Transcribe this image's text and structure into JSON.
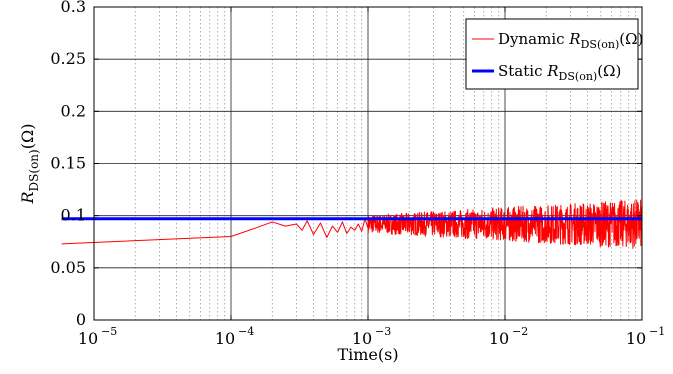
{
  "chart_data": {
    "type": "line",
    "title": "",
    "xlabel": "Time(s)",
    "ylabel": "R_DS(on)(Ω)",
    "ylabel_parts": {
      "symbol": "R",
      "subscript": "DS(on)",
      "unit": "(Ω)"
    },
    "xscale": "log",
    "xlim": [
      1e-05,
      0.1
    ],
    "ylim": [
      0,
      0.3
    ],
    "x_ticks": [
      {
        "base": "10",
        "exp": "−5"
      },
      {
        "base": "10",
        "exp": "−4"
      },
      {
        "base": "10",
        "exp": "−3"
      },
      {
        "base": "10",
        "exp": "−2"
      },
      {
        "base": "10",
        "exp": "−1"
      }
    ],
    "y_ticks": [
      "0",
      "0.05",
      "0.1",
      "0.15",
      "0.2",
      "0.25",
      "0.3"
    ],
    "grid": true,
    "legend": {
      "placement": "top-right",
      "entries": [
        {
          "prefix": "Dynamic ",
          "symbol": "R",
          "subscript": "DS(on)",
          "unit": "(Ω)",
          "color": "#ff0000"
        },
        {
          "prefix": "Static ",
          "symbol": "R",
          "subscript": "DS(on)",
          "unit": "(Ω)",
          "color": "#0000ff"
        }
      ]
    },
    "series": [
      {
        "name": "Dynamic R_DS(on)(Ω)",
        "color": "#ff0000",
        "x": [
          5.8e-06,
          0.0001,
          0.00015,
          0.0002,
          0.00025,
          0.0003,
          0.00033,
          0.00036,
          0.0004,
          0.00045,
          0.0005,
          0.00055,
          0.0006,
          0.00065,
          0.0007,
          0.00075,
          0.0008,
          0.00085,
          0.0009,
          0.00095,
          0.001
        ],
        "y": [
          0.073,
          0.08,
          0.088,
          0.094,
          0.09,
          0.092,
          0.086,
          0.095,
          0.082,
          0.093,
          0.079,
          0.09,
          0.084,
          0.094,
          0.083,
          0.089,
          0.086,
          0.092,
          0.085,
          0.097,
          0.088
        ],
        "noisy_region": {
          "x_start": 0.001,
          "x_end": 0.1,
          "y_center": 0.092,
          "y_min": 0.068,
          "y_max": 0.116
        }
      },
      {
        "name": "Static R_DS(on)(Ω)",
        "color": "#0000ff",
        "x": [
          5.8e-06,
          0.1
        ],
        "y": [
          0.097,
          0.097
        ]
      }
    ]
  }
}
